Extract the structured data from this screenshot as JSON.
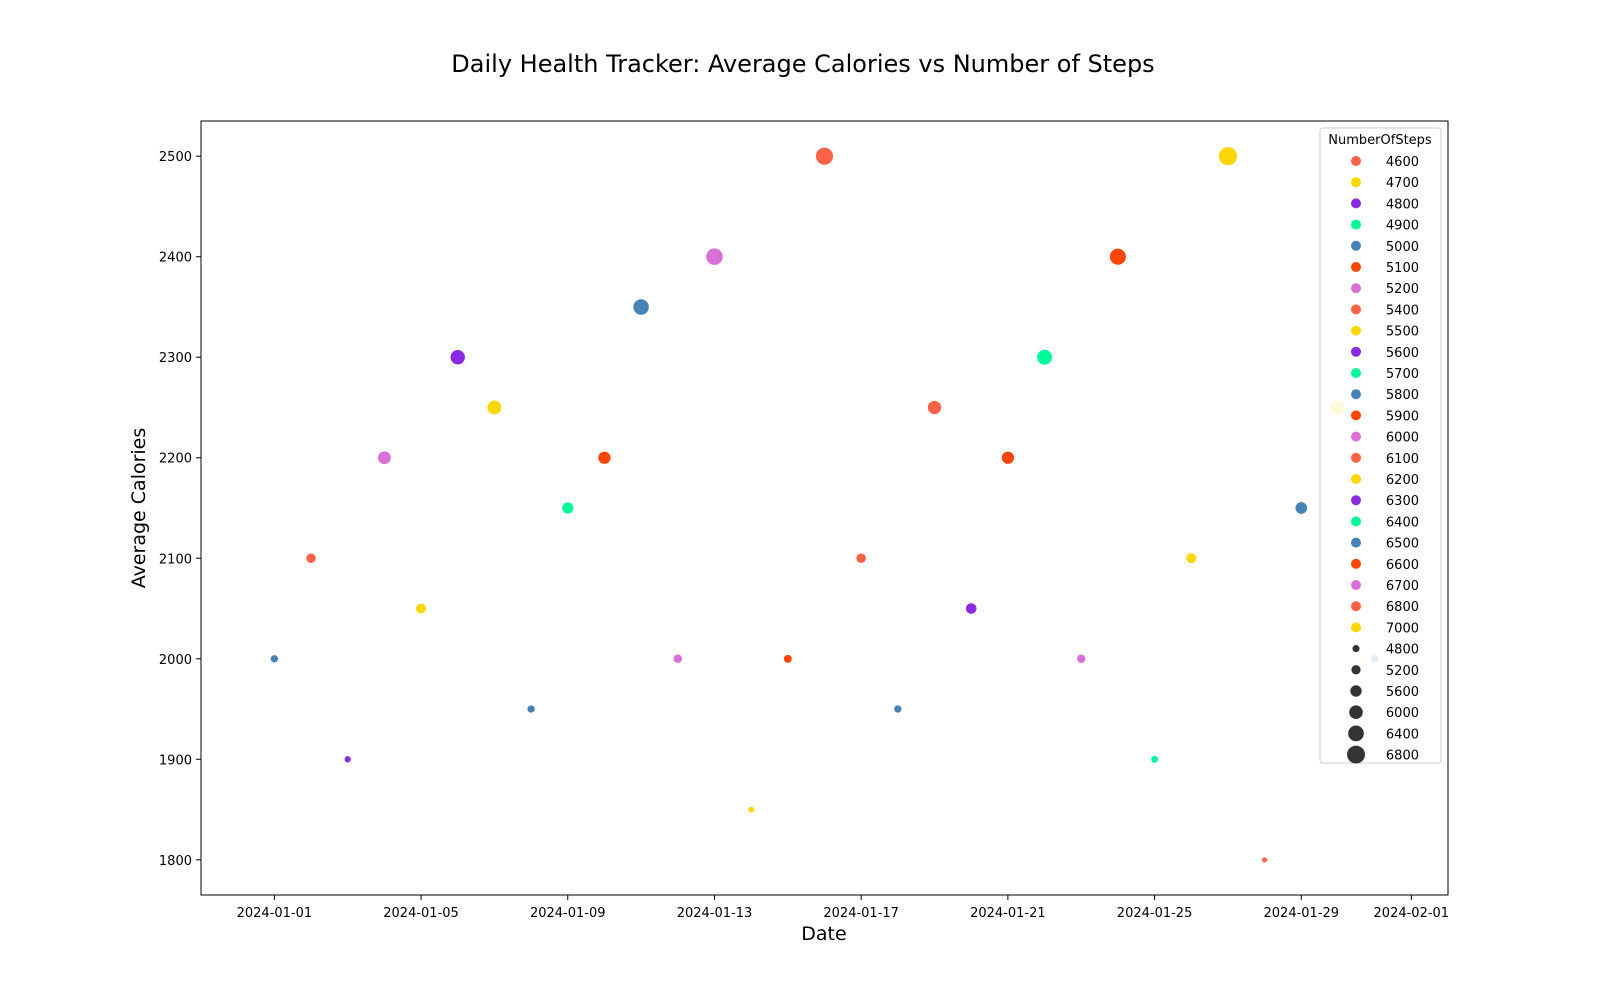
{
  "chart_data": {
    "type": "scatter",
    "title": "Daily Health Tracker: Average Calories vs Number of Steps",
    "xlabel": "Date",
    "ylabel": "Average Calories",
    "x_axis_type": "date",
    "xlim": [
      "2023-12-30",
      "2024-02-02"
    ],
    "ylim": [
      1765,
      2535
    ],
    "x_ticks": [
      "2024-01-01",
      "2024-01-05",
      "2024-01-09",
      "2024-01-13",
      "2024-01-17",
      "2024-01-21",
      "2024-01-25",
      "2024-01-29",
      "2024-02-01"
    ],
    "y_ticks": [
      1800,
      1900,
      2000,
      2100,
      2200,
      2300,
      2400,
      2500
    ],
    "grid": false,
    "legend_position": "top-right",
    "hue_legend_title": "NumberOfSteps",
    "points": [
      {
        "date": "2024-01-01",
        "calories": 2000,
        "steps": 5000
      },
      {
        "date": "2024-01-02",
        "calories": 2100,
        "steps": 5400
      },
      {
        "date": "2024-01-03",
        "calories": 1900,
        "steps": 4800
      },
      {
        "date": "2024-01-04",
        "calories": 2200,
        "steps": 6000
      },
      {
        "date": "2024-01-05",
        "calories": 2050,
        "steps": 5500
      },
      {
        "date": "2024-01-06",
        "calories": 2300,
        "steps": 6300
      },
      {
        "date": "2024-01-07",
        "calories": 2250,
        "steps": 6200
      },
      {
        "date": "2024-01-08",
        "calories": 1950,
        "steps": 5000
      },
      {
        "date": "2024-01-09",
        "calories": 2150,
        "steps": 5700
      },
      {
        "date": "2024-01-10",
        "calories": 2200,
        "steps": 5900
      },
      {
        "date": "2024-01-11",
        "calories": 2350,
        "steps": 6500
      },
      {
        "date": "2024-01-12",
        "calories": 2000,
        "steps": 5200
      },
      {
        "date": "2024-01-13",
        "calories": 2400,
        "steps": 6700
      },
      {
        "date": "2024-01-14",
        "calories": 1850,
        "steps": 4700
      },
      {
        "date": "2024-01-15",
        "calories": 2000,
        "steps": 5100
      },
      {
        "date": "2024-01-16",
        "calories": 2500,
        "steps": 6800
      },
      {
        "date": "2024-01-17",
        "calories": 2100,
        "steps": 5400
      },
      {
        "date": "2024-01-18",
        "calories": 1950,
        "steps": 5000
      },
      {
        "date": "2024-01-19",
        "calories": 2250,
        "steps": 6100
      },
      {
        "date": "2024-01-20",
        "calories": 2050,
        "steps": 5600
      },
      {
        "date": "2024-01-21",
        "calories": 2200,
        "steps": 5900
      },
      {
        "date": "2024-01-22",
        "calories": 2300,
        "steps": 6400
      },
      {
        "date": "2024-01-23",
        "calories": 2000,
        "steps": 5200
      },
      {
        "date": "2024-01-24",
        "calories": 2400,
        "steps": 6600
      },
      {
        "date": "2024-01-25",
        "calories": 1900,
        "steps": 4900
      },
      {
        "date": "2024-01-26",
        "calories": 2100,
        "steps": 5500
      },
      {
        "date": "2024-01-27",
        "calories": 2500,
        "steps": 7000
      },
      {
        "date": "2024-01-28",
        "calories": 1800,
        "steps": 4600
      },
      {
        "date": "2024-01-29",
        "calories": 2150,
        "steps": 5800
      },
      {
        "date": "2024-01-30",
        "calories": 2250,
        "steps": 6200
      },
      {
        "date": "2024-01-31",
        "calories": 2000,
        "steps": 5000
      }
    ],
    "hue_legend": [
      {
        "label": "4600",
        "color": "#FF6347"
      },
      {
        "label": "4700",
        "color": "#FFD700"
      },
      {
        "label": "4800",
        "color": "#8A2BE2"
      },
      {
        "label": "4900",
        "color": "#00FA9A"
      },
      {
        "label": "5000",
        "color": "#4682B4"
      },
      {
        "label": "5100",
        "color": "#FF4500"
      },
      {
        "label": "5200",
        "color": "#DA70D6"
      },
      {
        "label": "5400",
        "color": "#FF6347"
      },
      {
        "label": "5500",
        "color": "#FFD700"
      },
      {
        "label": "5600",
        "color": "#8A2BE2"
      },
      {
        "label": "5700",
        "color": "#00FA9A"
      },
      {
        "label": "5800",
        "color": "#4682B4"
      },
      {
        "label": "5900",
        "color": "#FF4500"
      },
      {
        "label": "6000",
        "color": "#DA70D6"
      },
      {
        "label": "6100",
        "color": "#FF6347"
      },
      {
        "label": "6200",
        "color": "#FFD700"
      },
      {
        "label": "6300",
        "color": "#8A2BE2"
      },
      {
        "label": "6400",
        "color": "#00FA9A"
      },
      {
        "label": "6500",
        "color": "#4682B4"
      },
      {
        "label": "6600",
        "color": "#FF4500"
      },
      {
        "label": "6700",
        "color": "#DA70D6"
      },
      {
        "label": "6800",
        "color": "#FF6347"
      },
      {
        "label": "7000",
        "color": "#FFD700"
      }
    ],
    "size_legend": [
      "4800",
      "5200",
      "5600",
      "6000",
      "6400",
      "6800"
    ],
    "size_legend_color": "#333333",
    "frame_color": "#000000"
  }
}
